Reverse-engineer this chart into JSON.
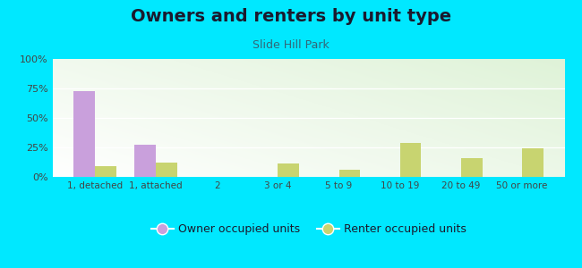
{
  "title": "Owners and renters by unit type",
  "subtitle": "Slide Hill Park",
  "categories": [
    "1, detached",
    "1, attached",
    "2",
    "3 or 4",
    "5 to 9",
    "10 to 19",
    "20 to 49",
    "50 or more"
  ],
  "owner_values": [
    73,
    27,
    0,
    0,
    0,
    0,
    0,
    0
  ],
  "renter_values": [
    9,
    12,
    0,
    11,
    6,
    29,
    16,
    24
  ],
  "owner_color": "#c9a0dc",
  "renter_color": "#c8d470",
  "background_outer": "#00e8ff",
  "ylim": [
    0,
    100
  ],
  "yticks": [
    0,
    25,
    50,
    75,
    100
  ],
  "ytick_labels": [
    "0%",
    "25%",
    "50%",
    "75%",
    "100%"
  ],
  "title_fontsize": 14,
  "subtitle_fontsize": 9,
  "legend_fontsize": 9,
  "bar_width": 0.35,
  "title_color": "#1a1a2e",
  "subtitle_color": "#336677",
  "tick_color": "#444444"
}
